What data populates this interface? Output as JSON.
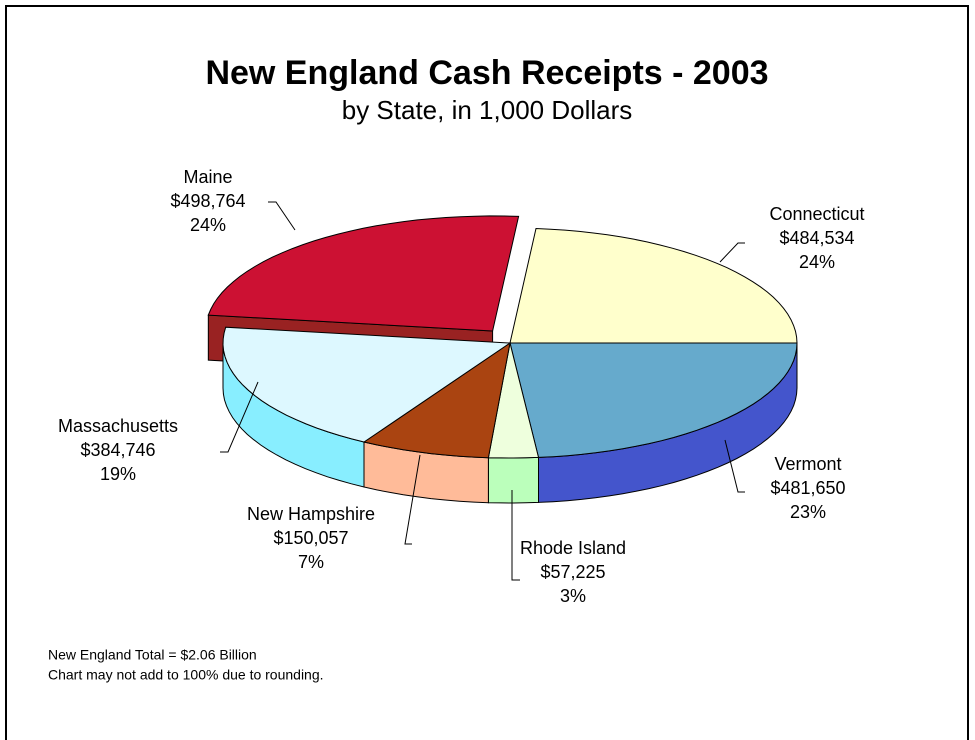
{
  "chart_data": {
    "type": "pie3d",
    "title": "New England Cash Receipts - 2003",
    "subtitle": "by State, in 1,000 Dollars",
    "categories": [
      "Connecticut",
      "Vermont",
      "Rhode Island",
      "New Hampshire",
      "Massachusetts",
      "Maine"
    ],
    "values": [
      484534,
      481650,
      57225,
      150057,
      384746,
      498764
    ],
    "value_labels": [
      "$484,534",
      "$481,650",
      "$57,225",
      "$150,057",
      "$384,746",
      "$498,764"
    ],
    "percent_labels": [
      "24%",
      "23%",
      "3%",
      "7%",
      "19%",
      "24%"
    ],
    "colors": [
      "#ffffcc",
      "#66aacc",
      "#eeffdd",
      "#aa4411",
      "#ddf8ff",
      "#cc1133"
    ],
    "side_colors": [
      "#e6e6aa",
      "#4455cc",
      "#bbffbb",
      "#ffbb99",
      "#88eeff",
      "#992222"
    ],
    "exploded": [
      "Maine"
    ],
    "annotations": [
      "New England Total = $2.06 Billion",
      "Chart may not add to 100% due to rounding."
    ]
  }
}
